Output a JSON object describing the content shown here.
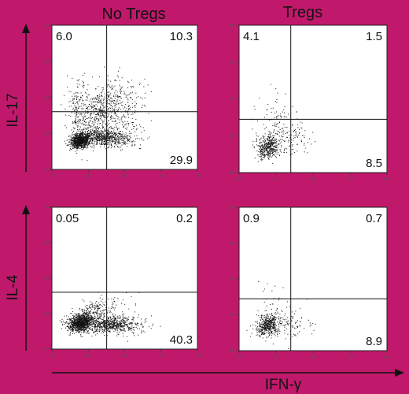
{
  "figure": {
    "background_color": "#c0196b",
    "panel_color": "#ffffff",
    "dot_color": "#111111",
    "x_axis_label": "IFN-γ",
    "row_axis_labels": [
      "IL-17",
      "IL-4"
    ],
    "column_titles": [
      "No Tregs",
      "Tregs"
    ]
  },
  "chart_data": [
    {
      "type": "scatter",
      "row": 0,
      "col": 0,
      "title": "No Tregs",
      "xlabel": "IFN-γ",
      "ylabel": "IL-17",
      "x_scale": "log",
      "y_scale": "log",
      "xlim": [
        1,
        10000
      ],
      "ylim": [
        1,
        10000
      ],
      "x_ticks": [
        "10⁰",
        "10¹",
        "10²",
        "10³",
        "10⁴"
      ],
      "y_ticks": [
        "10⁰",
        "10¹",
        "10²",
        "10³",
        "10⁴"
      ],
      "gate": {
        "x": 32,
        "y": 40
      },
      "quadrant_percentages": {
        "upper_left": "6.0",
        "upper_right": "10.3",
        "lower_left": "",
        "lower_right": "29.9"
      }
    },
    {
      "type": "scatter",
      "row": 0,
      "col": 1,
      "title": "Tregs",
      "xlabel": "IFN-γ",
      "ylabel": "IL-17",
      "x_scale": "log",
      "y_scale": "log",
      "xlim": [
        1,
        10000
      ],
      "ylim": [
        1,
        10000
      ],
      "x_ticks": [
        "10⁰",
        "10¹",
        "10²",
        "10³",
        "10⁴"
      ],
      "y_ticks": [
        "10⁰",
        "10¹",
        "10²",
        "10³",
        "10⁴"
      ],
      "gate": {
        "x": 25,
        "y": 28
      },
      "quadrant_percentages": {
        "upper_left": "4.1",
        "upper_right": "1.5",
        "lower_left": "",
        "lower_right": "8.5"
      }
    },
    {
      "type": "scatter",
      "row": 1,
      "col": 0,
      "title": "No Tregs",
      "xlabel": "IFN-γ",
      "ylabel": "IL-4",
      "x_scale": "log",
      "y_scale": "log",
      "xlim": [
        1,
        10000
      ],
      "ylim": [
        1,
        10000
      ],
      "x_ticks": [
        "10⁰",
        "10¹",
        "10²",
        "10³",
        "10⁴"
      ],
      "y_ticks": [
        "10⁰",
        "10¹",
        "10²",
        "10³",
        "10⁴"
      ],
      "gate": {
        "x": 32,
        "y": 40
      },
      "quadrant_percentages": {
        "upper_left": "0.05",
        "upper_right": "0.2",
        "lower_left": "",
        "lower_right": "40.3"
      }
    },
    {
      "type": "scatter",
      "row": 1,
      "col": 1,
      "title": "Tregs",
      "xlabel": "IFN-γ",
      "ylabel": "IL-4",
      "x_scale": "log",
      "y_scale": "log",
      "xlim": [
        1,
        10000
      ],
      "ylim": [
        1,
        10000
      ],
      "x_ticks": [
        "10⁰",
        "10¹",
        "10²",
        "10³",
        "10⁴"
      ],
      "y_ticks": [
        "10⁰",
        "10¹",
        "10²",
        "10³",
        "10⁴"
      ],
      "gate": {
        "x": 25,
        "y": 28
      },
      "quadrant_percentages": {
        "upper_left": "0.9",
        "upper_right": "0.7",
        "lower_left": "",
        "lower_right": "8.9"
      }
    }
  ]
}
